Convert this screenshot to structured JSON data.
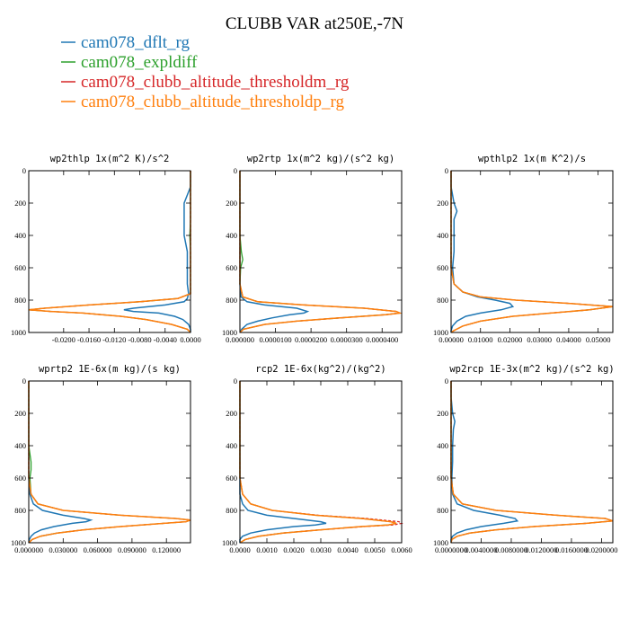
{
  "figure": {
    "title": "CLUBB VAR at250E,-7N"
  },
  "legend": [
    {
      "label": "cam078_dflt_rg",
      "color": "#1f77b4"
    },
    {
      "label": "cam078_expldiff",
      "color": "#2ca02c"
    },
    {
      "label": "cam078_clubb_altitude_thresholdm_rg",
      "color": "#d62728"
    },
    {
      "label": "cam078_clubb_altitude_thresholdp_rg",
      "color": "#ff7f0e"
    }
  ],
  "chart_data": [
    {
      "type": "line",
      "title": "wp2thlp   1x(m^2 K)/s^2",
      "xlim": [
        -0.0255,
        0.0
      ],
      "ylim": [
        1000,
        0
      ],
      "xticks": [
        "-0.0200",
        "-0.0160",
        "-0.0120",
        "-0.0080",
        "-0.0040",
        "0.0000"
      ],
      "xtick_values": [
        -0.02,
        -0.016,
        -0.012,
        -0.008,
        -0.004,
        0.0
      ],
      "yticks": [
        0,
        200,
        400,
        600,
        800,
        1000
      ],
      "y": [
        0,
        100,
        200,
        300,
        400,
        500,
        600,
        700,
        760,
        790,
        810,
        830,
        850,
        860,
        870,
        880,
        900,
        920,
        950,
        980,
        1000
      ],
      "series": [
        {
          "name": "cam078_dflt_rg",
          "values": [
            0,
            0,
            -0.001,
            -0.001,
            -0.001,
            -0.0005,
            -0.0005,
            -0.0005,
            -0.0003,
            -0.0005,
            -0.001,
            -0.004,
            -0.009,
            -0.0105,
            -0.009,
            -0.005,
            -0.0025,
            -0.0012,
            -0.0003,
            0,
            0
          ]
        },
        {
          "name": "cam078_expldiff",
          "values": [
            0,
            0,
            0,
            0,
            -0.0001,
            0,
            0,
            0,
            0,
            -0.002,
            -0.008,
            -0.016,
            -0.023,
            -0.0255,
            -0.022,
            -0.017,
            -0.011,
            -0.007,
            -0.003,
            -0.0005,
            0
          ]
        },
        {
          "name": "cam078_clubb_altitude_thresholdm_rg",
          "values": [
            0,
            0,
            0,
            0,
            0,
            0,
            0,
            0,
            0,
            -0.002,
            -0.008,
            -0.016,
            -0.023,
            -0.0255,
            -0.022,
            -0.017,
            -0.011,
            -0.007,
            -0.003,
            -0.0005,
            0
          ]
        },
        {
          "name": "cam078_clubb_altitude_thresholdp_rg",
          "values": [
            0,
            0,
            0,
            0,
            0,
            0,
            0,
            0,
            0,
            -0.002,
            -0.008,
            -0.016,
            -0.023,
            -0.0255,
            -0.022,
            -0.017,
            -0.011,
            -0.007,
            -0.003,
            -0.0005,
            0
          ]
        }
      ]
    },
    {
      "type": "line",
      "title": "wp2rtp   1x(m^2 kg)/(s^2 kg)",
      "xlim": [
        0.0,
        4.55e-05
      ],
      "ylim": [
        1000,
        0
      ],
      "xticks": [
        "0.000000",
        "0.0000100",
        "0.0000200",
        "0.0000300",
        "0.0000400"
      ],
      "xtick_values": [
        0.0,
        1e-05,
        2e-05,
        3e-05,
        4e-05
      ],
      "yticks": [
        0,
        200,
        400,
        600,
        800,
        1000
      ],
      "y": [
        0,
        100,
        200,
        300,
        400,
        500,
        550,
        600,
        700,
        780,
        810,
        830,
        850,
        870,
        880,
        890,
        910,
        930,
        950,
        980,
        1000
      ],
      "series": [
        {
          "name": "cam078_dflt_rg",
          "values": [
            0,
            0,
            0,
            0,
            0,
            0,
            0,
            0,
            0,
            3e-07,
            2e-06,
            7e-06,
            1.6e-05,
            1.9e-05,
            1.8e-05,
            1.4e-05,
            9e-06,
            5e-06,
            2e-06,
            5e-07,
            0
          ]
        },
        {
          "name": "cam078_expldiff",
          "values": [
            0,
            0,
            0,
            0,
            0,
            4e-07,
            8e-07,
            2e-07,
            0,
            8e-07,
            5e-06,
            1.8e-05,
            3.5e-05,
            4.4e-05,
            4.5e-05,
            4.1e-05,
            2.8e-05,
            1.6e-05,
            7e-06,
            1e-06,
            0
          ]
        },
        {
          "name": "cam078_clubb_altitude_thresholdm_rg",
          "values": [
            0,
            0,
            0,
            0,
            0,
            0,
            0,
            0,
            0,
            8e-07,
            5e-06,
            1.8e-05,
            3.5e-05,
            4.4e-05,
            4.5e-05,
            4.1e-05,
            2.8e-05,
            1.6e-05,
            7e-06,
            1e-06,
            0
          ]
        },
        {
          "name": "cam078_clubb_altitude_thresholdp_rg",
          "values": [
            0,
            0,
            0,
            0,
            0,
            0,
            0,
            0,
            0,
            8e-07,
            5e-06,
            1.8e-05,
            3.5e-05,
            4.4e-05,
            4.5e-05,
            4.1e-05,
            2.8e-05,
            1.6e-05,
            7e-06,
            1e-06,
            0
          ]
        }
      ]
    },
    {
      "type": "line",
      "title": "wpthlp2   1x(m K^2)/s",
      "xlim": [
        0.0,
        0.055
      ],
      "ylim": [
        1000,
        0
      ],
      "xticks": [
        "0.00000",
        "0.01000",
        "0.02000",
        "0.03000",
        "0.04000",
        "0.05000"
      ],
      "xtick_values": [
        0.0,
        0.01,
        0.02,
        0.03,
        0.04,
        0.05
      ],
      "yticks": [
        0,
        200,
        400,
        600,
        800,
        1000
      ],
      "y": [
        0,
        100,
        200,
        250,
        300,
        400,
        500,
        600,
        700,
        750,
        780,
        800,
        820,
        840,
        860,
        880,
        900,
        930,
        960,
        990,
        1000
      ],
      "series": [
        {
          "name": "cam078_dflt_rg",
          "values": [
            0,
            0,
            0.001,
            0.002,
            0.001,
            0.001,
            0.001,
            0.0005,
            0.001,
            0.004,
            0.009,
            0.015,
            0.02,
            0.021,
            0.017,
            0.01,
            0.005,
            0.002,
            0.0005,
            0,
            0
          ]
        },
        {
          "name": "cam078_expldiff",
          "values": [
            0,
            0,
            0,
            0,
            0,
            0,
            0,
            0,
            0.001,
            0.004,
            0.01,
            0.022,
            0.04,
            0.055,
            0.047,
            0.034,
            0.021,
            0.01,
            0.004,
            0.0008,
            0
          ]
        },
        {
          "name": "cam078_clubb_altitude_thresholdm_rg",
          "values": [
            0,
            0,
            0,
            0,
            0,
            0,
            0,
            0,
            0.001,
            0.004,
            0.01,
            0.022,
            0.04,
            0.055,
            0.047,
            0.034,
            0.021,
            0.01,
            0.004,
            0.0008,
            0
          ]
        },
        {
          "name": "cam078_clubb_altitude_thresholdp_rg",
          "values": [
            0,
            0,
            0,
            0,
            0,
            0,
            0,
            0,
            0.001,
            0.004,
            0.01,
            0.022,
            0.04,
            0.055,
            0.047,
            0.034,
            0.021,
            0.01,
            0.004,
            0.0008,
            0
          ]
        }
      ]
    },
    {
      "type": "line",
      "title": "wprtp2   1E-6x(m kg)/(s kg)",
      "xlim": [
        0.0,
        0.141
      ],
      "ylim": [
        1000,
        0
      ],
      "xticks": [
        "0.000000",
        "0.030000",
        "0.060000",
        "0.090000",
        "0.120000"
      ],
      "xtick_values": [
        0.0,
        0.03,
        0.06,
        0.09,
        0.12
      ],
      "yticks": [
        0,
        200,
        400,
        600,
        800,
        1000
      ],
      "y": [
        0,
        200,
        400,
        500,
        550,
        600,
        700,
        760,
        800,
        830,
        850,
        860,
        870,
        880,
        900,
        920,
        940,
        960,
        980,
        1000
      ],
      "series": [
        {
          "name": "cam078_dflt_rg",
          "values": [
            0,
            0,
            0,
            0,
            0,
            0,
            0.001,
            0.004,
            0.012,
            0.03,
            0.048,
            0.054,
            0.05,
            0.038,
            0.022,
            0.011,
            0.005,
            0.002,
            0.0005,
            0
          ]
        },
        {
          "name": "cam078_expldiff",
          "values": [
            0,
            0,
            0,
            0.002,
            0.002,
            0.001,
            0.002,
            0.008,
            0.03,
            0.08,
            0.128,
            0.141,
            0.137,
            0.118,
            0.08,
            0.048,
            0.025,
            0.01,
            0.003,
            0
          ]
        },
        {
          "name": "cam078_clubb_altitude_thresholdm_rg",
          "values": [
            0,
            0,
            0,
            0,
            0,
            0,
            0.002,
            0.008,
            0.03,
            0.08,
            0.128,
            0.141,
            0.137,
            0.118,
            0.08,
            0.048,
            0.025,
            0.01,
            0.003,
            0
          ]
        },
        {
          "name": "cam078_clubb_altitude_thresholdp_rg",
          "values": [
            0,
            0,
            0,
            0,
            0,
            0,
            0.002,
            0.008,
            0.03,
            0.08,
            0.128,
            0.141,
            0.137,
            0.118,
            0.08,
            0.048,
            0.025,
            0.01,
            0.003,
            0
          ]
        }
      ]
    },
    {
      "type": "line",
      "title": "rcp2   1E-6x(kg^2)/(kg^2)",
      "xlim": [
        0.0,
        0.006
      ],
      "ylim": [
        1000,
        0
      ],
      "xticks": [
        "0.0000",
        "0.0010",
        "0.0020",
        "0.0030",
        "0.0040",
        "0.0050",
        "0.0060"
      ],
      "xtick_values": [
        0.0,
        0.001,
        0.002,
        0.003,
        0.004,
        0.005,
        0.006
      ],
      "yticks": [
        0,
        200,
        400,
        600,
        800,
        1000
      ],
      "y": [
        0,
        200,
        400,
        600,
        700,
        760,
        800,
        830,
        850,
        870,
        880,
        890,
        900,
        920,
        940,
        960,
        980,
        1000
      ],
      "series": [
        {
          "name": "cam078_dflt_rg",
          "values": [
            0,
            0,
            0,
            0,
            0,
            0.0001,
            0.0003,
            0.001,
            0.002,
            0.003,
            0.0032,
            0.0028,
            0.002,
            0.001,
            0.0004,
            0.0001,
            0,
            0
          ]
        },
        {
          "name": "cam078_expldiff",
          "values": [
            0,
            0,
            0,
            0,
            0.0001,
            0.0004,
            0.0012,
            0.0028,
            0.0045,
            0.0056,
            0.0058,
            0.0055,
            0.0045,
            0.003,
            0.0016,
            0.0007,
            0.0002,
            0
          ]
        },
        {
          "name": "cam078_clubb_altitude_thresholdm_rg",
          "values": [
            0,
            0,
            0,
            0,
            0.0001,
            0.0004,
            0.0012,
            0.0029,
            0.0047,
            0.0059,
            0.006,
            0.0057,
            0.0046,
            0.003,
            0.0016,
            0.0007,
            0.0002,
            0
          ]
        },
        {
          "name": "cam078_clubb_altitude_thresholdp_rg",
          "values": [
            0,
            0,
            0,
            0,
            0.0001,
            0.0004,
            0.0012,
            0.0028,
            0.0045,
            0.0056,
            0.0058,
            0.0055,
            0.0045,
            0.003,
            0.0016,
            0.0007,
            0.0002,
            0
          ]
        }
      ]
    },
    {
      "type": "line",
      "title": "wp2rcp   1E-3x(m^2 kg)/(s^2 kg)",
      "xlim": [
        0.0,
        0.0215
      ],
      "ylim": [
        1000,
        0
      ],
      "xticks": [
        "0.0000000",
        "0.0040000",
        "0.0080000",
        "0.0120000",
        "0.0160000",
        "0.0200000"
      ],
      "xtick_values": [
        0.0,
        0.004,
        0.008,
        0.012,
        0.016,
        0.02
      ],
      "yticks": [
        0,
        200,
        400,
        600,
        800,
        1000
      ],
      "y": [
        0,
        100,
        200,
        250,
        300,
        400,
        500,
        600,
        700,
        760,
        800,
        830,
        850,
        865,
        880,
        900,
        920,
        940,
        960,
        980,
        1000
      ],
      "series": [
        {
          "name": "cam078_dflt_rg",
          "values": [
            0,
            0,
            0.0002,
            0.0005,
            0.0003,
            0.0002,
            0.0002,
            0.0001,
            0.0002,
            0.0008,
            0.003,
            0.0065,
            0.0085,
            0.0088,
            0.007,
            0.004,
            0.002,
            0.0008,
            0.0002,
            0,
            0
          ]
        },
        {
          "name": "cam078_expldiff",
          "values": [
            0,
            0,
            0,
            0,
            0,
            0,
            0,
            0,
            0.0003,
            0.0015,
            0.006,
            0.014,
            0.0205,
            0.0215,
            0.018,
            0.011,
            0.006,
            0.0025,
            0.0008,
            0.0001,
            0
          ]
        },
        {
          "name": "cam078_clubb_altitude_thresholdm_rg",
          "values": [
            0,
            0,
            0,
            0,
            0,
            0,
            0,
            0,
            0.0003,
            0.0015,
            0.006,
            0.014,
            0.0205,
            0.0215,
            0.018,
            0.011,
            0.006,
            0.0025,
            0.0008,
            0.0001,
            0
          ]
        },
        {
          "name": "cam078_clubb_altitude_thresholdp_rg",
          "values": [
            0,
            0,
            0,
            0,
            0,
            0,
            0,
            0,
            0.0003,
            0.0015,
            0.006,
            0.014,
            0.0205,
            0.0215,
            0.018,
            0.011,
            0.006,
            0.0025,
            0.0008,
            0.0001,
            0
          ]
        }
      ]
    }
  ]
}
